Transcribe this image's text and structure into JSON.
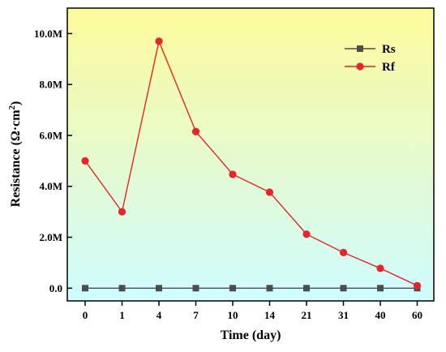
{
  "chart_data": {
    "type": "line",
    "xlabel": "Time (day)",
    "ylabel": "Resistance (Ω·cm²)",
    "ylabel_parts": {
      "main": "Resistance (Ω·cm",
      "sup": "2",
      "end": ")"
    },
    "categories": [
      "0",
      "1",
      "4",
      "7",
      "10",
      "14",
      "21",
      "31",
      "40",
      "60"
    ],
    "yticks": [
      0,
      2,
      4,
      6,
      8,
      10
    ],
    "ytick_labels": [
      "0.0",
      "2.0M",
      "4.0M",
      "6.0M",
      "8.0M",
      "10.0M"
    ],
    "ylim": [
      -0.5,
      11
    ],
    "grid": false,
    "legend_position": "top-right",
    "background_gradient": [
      "#fdfa9b",
      "#cffcff"
    ],
    "series": [
      {
        "name": "Rs",
        "marker": "square",
        "color": "#4d4d4d",
        "values": [
          0,
          0,
          0,
          0,
          0,
          0,
          0,
          0,
          0,
          0
        ]
      },
      {
        "name": "Rf",
        "marker": "circle",
        "color": "#e8232a",
        "values": [
          5.0,
          3.0,
          9.7,
          6.15,
          4.47,
          3.77,
          2.12,
          1.4,
          0.78,
          0.1
        ]
      }
    ]
  }
}
